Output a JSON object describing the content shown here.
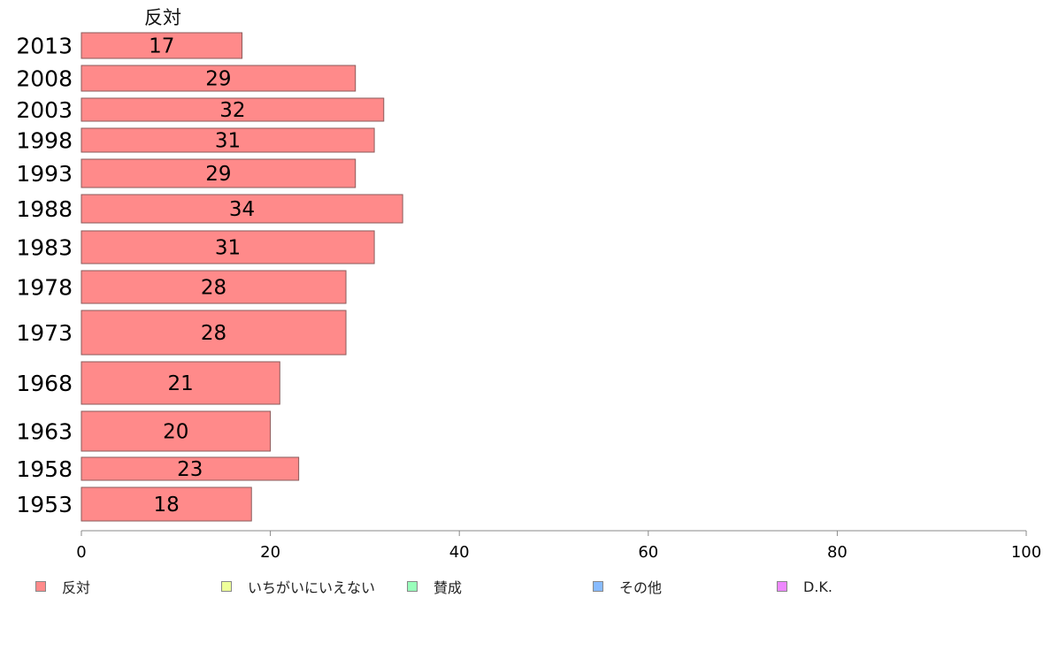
{
  "chart_data": {
    "type": "bar",
    "orientation": "horizontal",
    "title": "反対",
    "categories": [
      "2013",
      "2008",
      "2003",
      "1998",
      "1993",
      "1988",
      "1983",
      "1978",
      "1973",
      "1968",
      "1963",
      "1958",
      "1953"
    ],
    "series": [
      {
        "name": "反対",
        "values": [
          17,
          29,
          32,
          31,
          29,
          34,
          31,
          28,
          28,
          21,
          20,
          23,
          18
        ]
      }
    ],
    "xlim": [
      0,
      100
    ],
    "xticks": [
      0,
      20,
      40,
      60,
      80,
      100
    ],
    "xlabel": "",
    "ylabel": "",
    "grid": false,
    "legend_placement": "bottom",
    "legend": [
      {
        "label": "反対",
        "color": "#ff8a8a"
      },
      {
        "label": "いちがいにいえない",
        "color": "#eeff99"
      },
      {
        "label": "賛成",
        "color": "#99ffbb"
      },
      {
        "label": "その他",
        "color": "#88bbff"
      },
      {
        "label": "D.K.",
        "color": "#ee88ff"
      }
    ],
    "bar_color": "#ff8a8a"
  }
}
